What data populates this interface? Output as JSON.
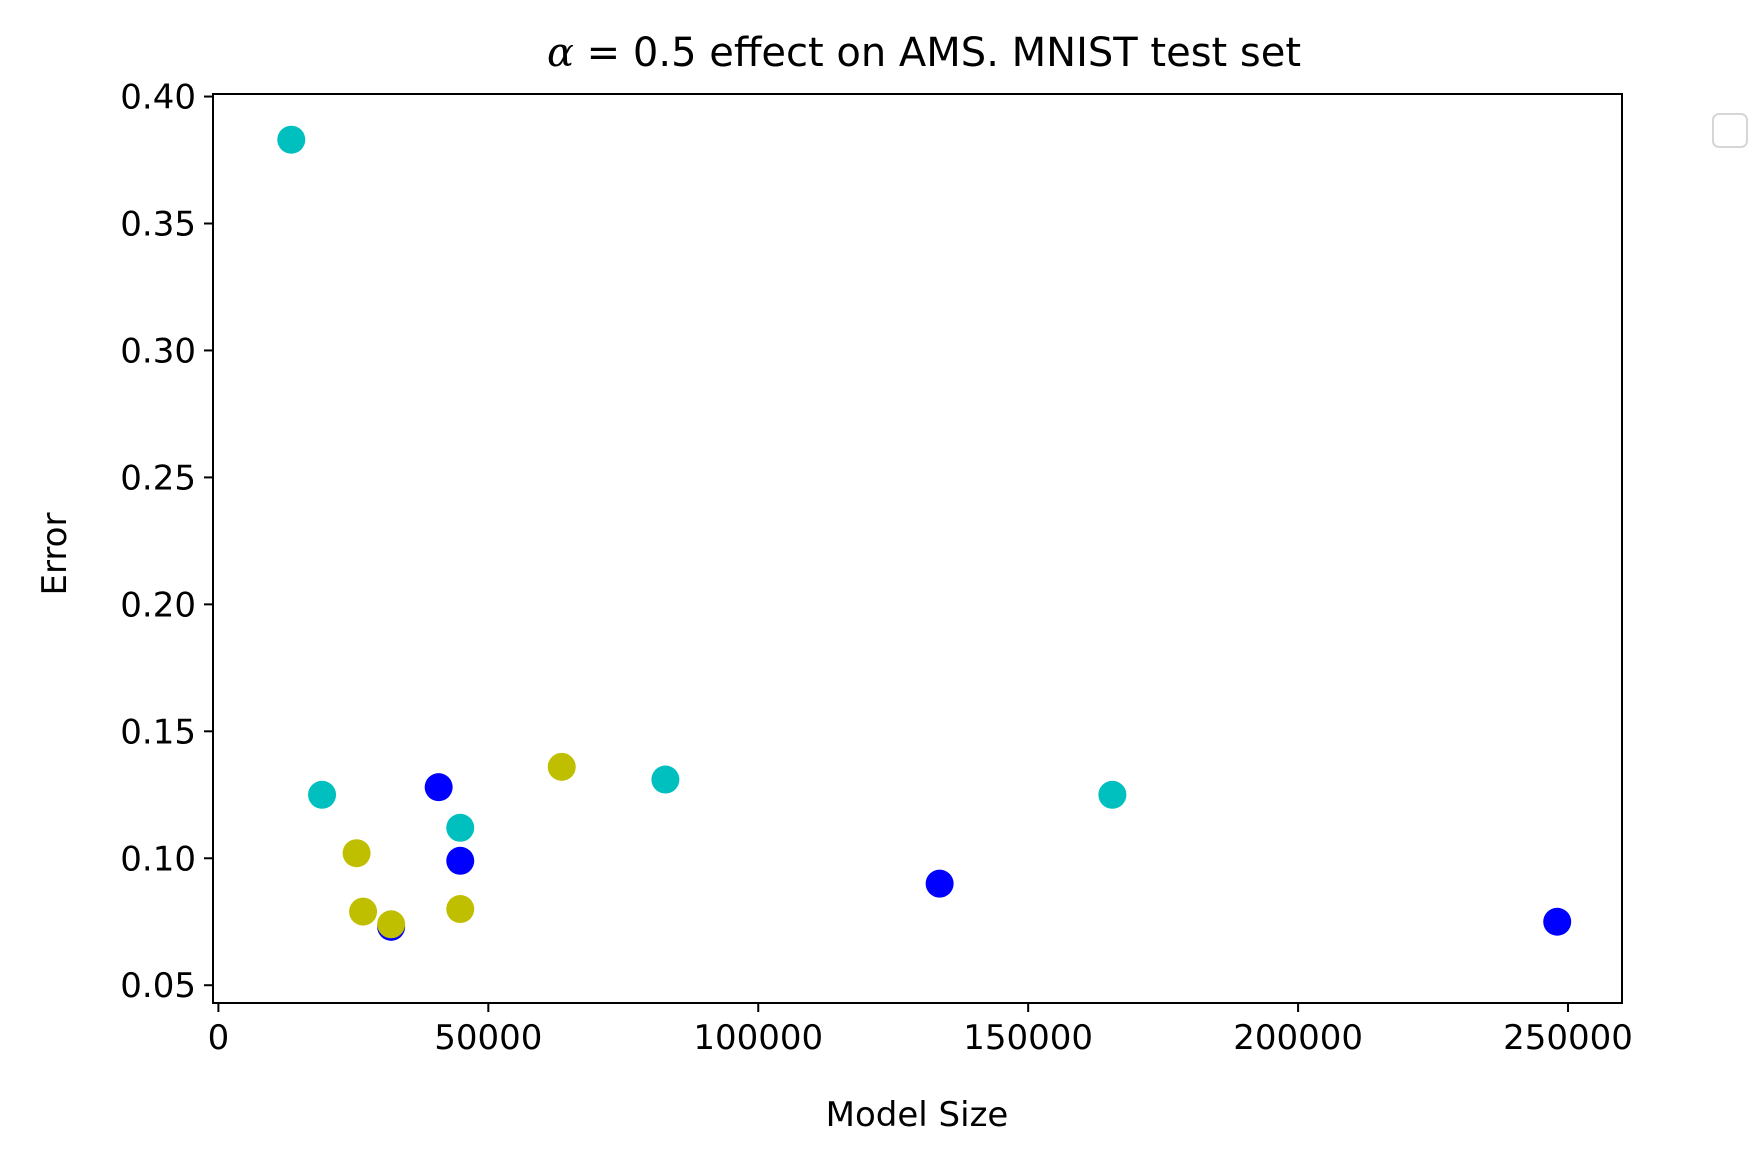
{
  "chart_data": {
    "type": "scatter",
    "title_prefix": "α",
    "title_rest": " = 0.5 effect on AMS. MNIST test set",
    "xlabel": "Model Size",
    "ylabel": "Error",
    "xlim": [
      -1000,
      260000
    ],
    "ylim": [
      0.043,
      0.401
    ],
    "x_ticks": [
      0,
      50000,
      100000,
      150000,
      200000,
      250000
    ],
    "x_tick_labels": [
      "0",
      "50000",
      "100000",
      "150000",
      "200000",
      "250000"
    ],
    "y_ticks": [
      0.05,
      0.1,
      0.15,
      0.2,
      0.25,
      0.3,
      0.35,
      0.4
    ],
    "y_tick_labels": [
      "0.05",
      "0.10",
      "0.15",
      "0.20",
      "0.25",
      "0.30",
      "0.35",
      "0.40"
    ],
    "grid": false,
    "legend": {
      "placement": "outside-top-right",
      "entries": []
    },
    "series": [
      {
        "color": "#00bfbf",
        "points": [
          {
            "x": 13500,
            "y": 0.383
          },
          {
            "x": 19200,
            "y": 0.125
          },
          {
            "x": 44800,
            "y": 0.112
          },
          {
            "x": 82800,
            "y": 0.131
          },
          {
            "x": 165600,
            "y": 0.125
          }
        ]
      },
      {
        "color": "#0000ff",
        "points": [
          {
            "x": 32000,
            "y": 0.073
          },
          {
            "x": 40800,
            "y": 0.128
          },
          {
            "x": 44800,
            "y": 0.099
          },
          {
            "x": 133600,
            "y": 0.09
          },
          {
            "x": 248000,
            "y": 0.075
          }
        ]
      },
      {
        "color": "#bfbf00",
        "points": [
          {
            "x": 25600,
            "y": 0.102
          },
          {
            "x": 26800,
            "y": 0.079
          },
          {
            "x": 32000,
            "y": 0.074
          },
          {
            "x": 44800,
            "y": 0.08
          },
          {
            "x": 63600,
            "y": 0.136
          }
        ]
      }
    ]
  }
}
